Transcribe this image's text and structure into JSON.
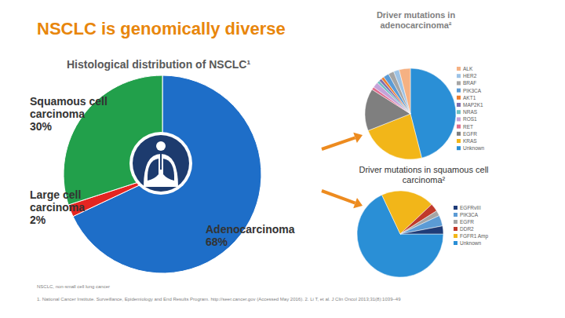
{
  "header": {
    "title": "NSCLC is genomically diverse"
  },
  "chart_data": [
    {
      "type": "pie",
      "title": "Histological distribution of NSCLC¹",
      "categories": [
        "Adenocarcinoma",
        "Large cell carcinoma",
        "Squamous cell carcinoma"
      ],
      "values": [
        68,
        2,
        30
      ],
      "value_labels": [
        "68%",
        "2%",
        "30%"
      ],
      "colors": [
        "#1e6ec8",
        "#e52521",
        "#22a04b"
      ],
      "data_labels": true
    },
    {
      "type": "pie",
      "title": "Driver mutations in adenocarcinoma²",
      "categories": [
        "ALK",
        "HER2",
        "BRAF",
        "PIK3CA",
        "AKT1",
        "MAP2K1",
        "NRAS",
        "ROS1",
        "RET",
        "EGFR",
        "KRAS",
        "Unknown"
      ],
      "values": [
        4,
        2,
        2,
        2,
        1,
        1,
        1,
        2,
        1,
        15,
        23,
        46
      ],
      "colors": [
        "#f5b183",
        "#9dc3e6",
        "#a5a5a5",
        "#5b9bd5",
        "#ed7d31",
        "#7f6fb0",
        "#70c1c4",
        "#c5a3d9",
        "#e06c8c",
        "#7f7f7f",
        "#f2b619",
        "#2a8fd6"
      ],
      "legend": "right"
    },
    {
      "type": "pie",
      "title": "Driver mutations in squamous cell carcinoma²",
      "categories": [
        "EGFRvIII",
        "PIK3CA",
        "EGFR",
        "DDR2",
        "FGFR1 Amp",
        "Unknown"
      ],
      "values": [
        3,
        4,
        2,
        3,
        20,
        68
      ],
      "colors": [
        "#1f3c78",
        "#5b9bd5",
        "#a5a5a5",
        "#c0392b",
        "#f2b619",
        "#2a8fd6"
      ],
      "legend": "right"
    }
  ],
  "footer": {
    "abbreviation": "NSCLC, non-small cell lung cancer",
    "references": "1. National Cancer Institute. Surveillance, Epidemiology and End Results Program. http://seer.cancer.gov (Accessed May 2016). 2. Li T, et al. J Clin Oncol 2013;31(8):1039–49"
  }
}
